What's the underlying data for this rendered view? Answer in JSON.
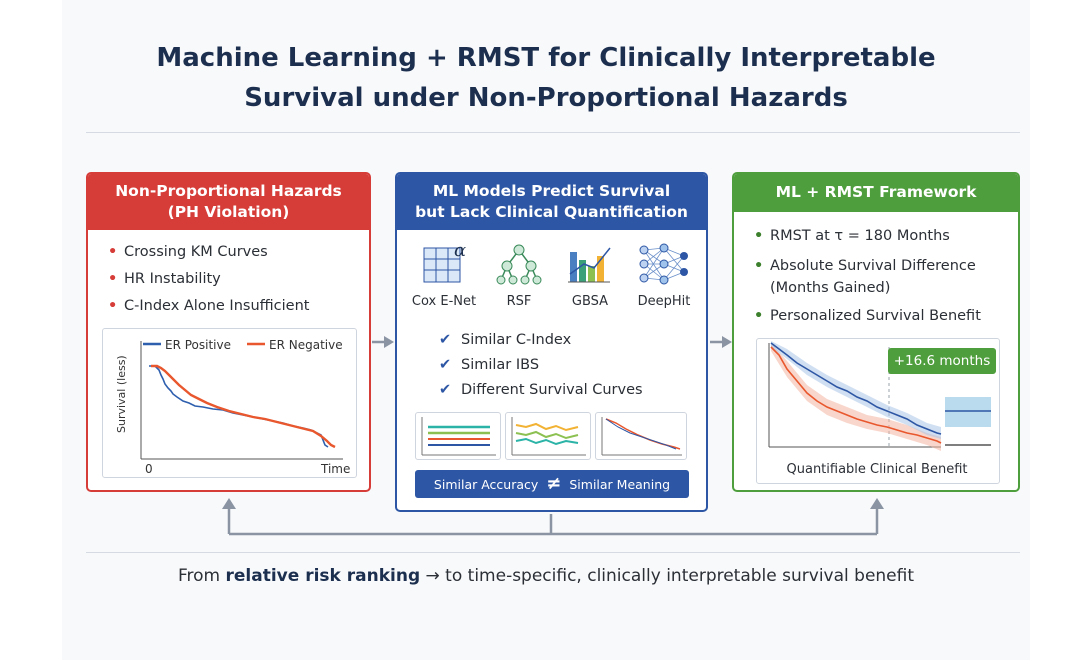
{
  "title": {
    "line1": "Machine Learning + RMST for Clinically Interpretable",
    "line2": "Survival under Non-Proportional Hazards"
  },
  "panel_left": {
    "header_line1": "Non-Proportional Hazards",
    "header_line2": "(PH Violation)",
    "bullets": [
      "Crossing KM Curves",
      "HR Instability",
      "C-Index Alone Insufficient"
    ],
    "chart": {
      "legend": [
        "ER Positive",
        "ER Negative"
      ],
      "ylabel": "Survival (less)",
      "x_start": "0",
      "xlabel": "Time",
      "colors": {
        "er_positive": "#2e5fae",
        "er_negative": "#e8572d"
      }
    }
  },
  "panel_middle": {
    "header_line1": "ML Models Predict Survival",
    "header_line2": "but Lack Clinical Quantification",
    "models": [
      {
        "label": "Cox E-Net",
        "icon": "grid-alpha-icon"
      },
      {
        "label": "RSF",
        "icon": "tree-icon"
      },
      {
        "label": "GBSA",
        "icon": "bar-chart-icon"
      },
      {
        "label": "DeepHit",
        "icon": "neural-network-icon"
      }
    ],
    "checks": [
      "Similar C-Index",
      "Similar IBS",
      "Different Survival Curves"
    ],
    "banner_left": "Similar Accuracy",
    "banner_symbol": "≠",
    "banner_right": "Similar Meaning"
  },
  "panel_right": {
    "header": "ML + RMST Framework",
    "bullets": [
      "RMST at τ = 180 Months",
      "Absolute Survival Difference",
      "(Months Gained)",
      "Personalized Survival Benefit"
    ],
    "badge": "+16.6 months",
    "caption": "Quantifiable Clinical Benefit"
  },
  "bottom": {
    "prefix": "From ",
    "bold": "relative risk ranking",
    "arrow": "→",
    "suffix": " to time-specific, clinically interpretable survival benefit"
  },
  "colors": {
    "title": "#1c2f4e",
    "red": "#d63c38",
    "blue": "#2d56a4",
    "green": "#4f9e3d",
    "arrow": "#8a94a3"
  }
}
